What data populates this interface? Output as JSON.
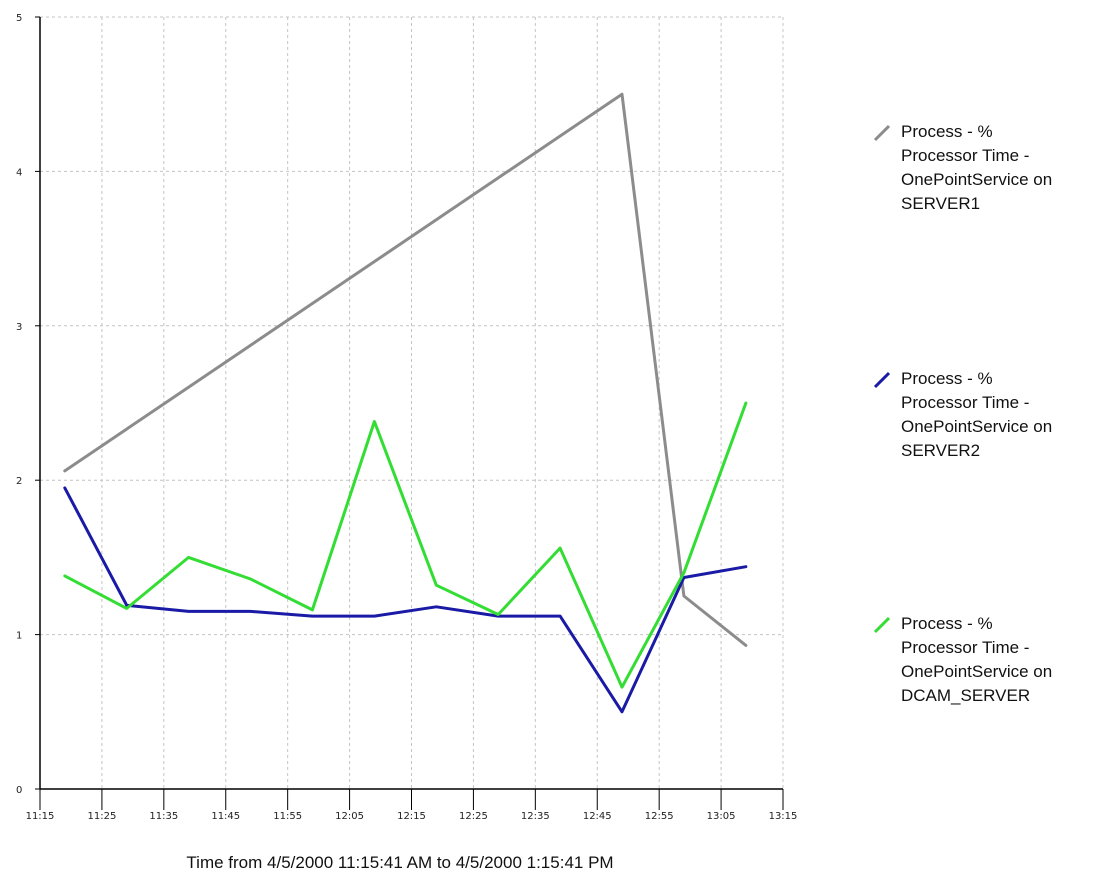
{
  "chart_data": {
    "type": "line",
    "xlabel": "Time from 4/5/2000 11:15:41 AM to 4/5/2000 1:15:41 PM",
    "ylabel": "",
    "ylim": [
      0,
      5
    ],
    "yticks": [
      "0",
      "1",
      "2",
      "3",
      "4",
      "5"
    ],
    "xticks": [
      "11:15",
      "11:25",
      "11:35",
      "11:45",
      "11:55",
      "12:05",
      "12:15",
      "12:25",
      "12:35",
      "12:45",
      "12:55",
      "13:05",
      "13:15"
    ],
    "grid": true,
    "legend_position": "right",
    "series": [
      {
        "name": "Process - % Processor Time - OnePointService on SERVER1",
        "color": "#8c8c8c",
        "points": [
          [
            "11:19",
            2.06
          ],
          [
            "12:49",
            4.5
          ],
          [
            "12:59",
            1.25
          ],
          [
            "13:09",
            0.93
          ]
        ]
      },
      {
        "name": "Process - % Processor Time - OnePointService on SERVER2",
        "color": "#1a1aa6",
        "points": [
          [
            "11:19",
            1.95
          ],
          [
            "11:29",
            1.19
          ],
          [
            "11:39",
            1.15
          ],
          [
            "11:49",
            1.15
          ],
          [
            "11:59",
            1.12
          ],
          [
            "12:09",
            1.12
          ],
          [
            "12:19",
            1.18
          ],
          [
            "12:29",
            1.12
          ],
          [
            "12:39",
            1.12
          ],
          [
            "12:49",
            0.5
          ],
          [
            "12:59",
            1.37
          ],
          [
            "13:09",
            1.44
          ]
        ]
      },
      {
        "name": "Process - % Processor Time - OnePointService on DCAM_SERVER",
        "color": "#33dd33",
        "points": [
          [
            "11:19",
            1.38
          ],
          [
            "11:29",
            1.17
          ],
          [
            "11:39",
            1.5
          ],
          [
            "11:49",
            1.36
          ],
          [
            "11:59",
            1.16
          ],
          [
            "12:09",
            2.38
          ],
          [
            "12:19",
            1.32
          ],
          [
            "12:29",
            1.13
          ],
          [
            "12:39",
            1.56
          ],
          [
            "12:49",
            0.66
          ],
          [
            "12:59",
            1.4
          ],
          [
            "13:09",
            2.5
          ]
        ]
      }
    ]
  },
  "legend": {
    "items": [
      {
        "label": "Process - %\nProcessor Time -\nOnePointService on\nSERVER1"
      },
      {
        "label": "Process - %\nProcessor Time -\nOnePointService on\nSERVER2"
      },
      {
        "label": "Process - %\nProcessor Time -\nOnePointService on\nDCAM_SERVER"
      }
    ]
  }
}
